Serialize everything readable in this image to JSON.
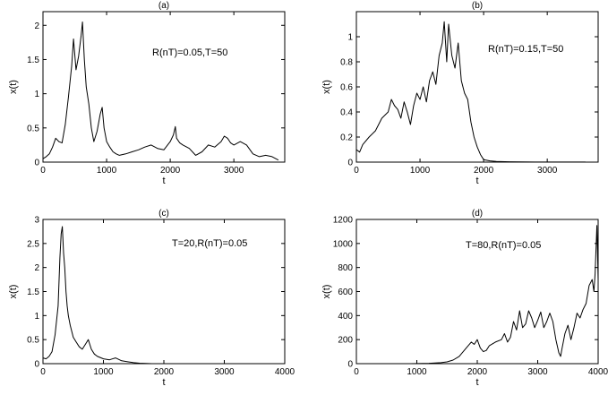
{
  "chart_data": [
    {
      "type": "line",
      "panel_label": "(a)",
      "annotation": "R(nT)=0.05,T=50",
      "xlabel": "t",
      "ylabel": "x(t)",
      "xlim": [
        0,
        3800
      ],
      "ylim": [
        0,
        2.2
      ],
      "xticks": [
        "0",
        "1000",
        "2000",
        "3000"
      ],
      "xtick_values": [
        0,
        1000,
        2000,
        3000
      ],
      "yticks": [
        "0",
        "0.5",
        "1",
        "1.5",
        "2"
      ],
      "ytick_values": [
        0,
        0.5,
        1,
        1.5,
        2
      ],
      "series": [
        {
          "x": [
            0,
            50,
            100,
            150,
            200,
            250,
            300,
            350,
            400,
            450,
            480,
            520,
            560,
            600,
            620,
            650,
            680,
            720,
            760,
            800,
            850,
            900,
            930,
            960,
            1000,
            1050,
            1100,
            1150,
            1200,
            1300,
            1400,
            1500,
            1600,
            1700,
            1800,
            1900,
            2000,
            2050,
            2080,
            2100,
            2150,
            2200,
            2300,
            2400,
            2500,
            2600,
            2700,
            2800,
            2850,
            2900,
            2950,
            3000,
            3100,
            3200,
            3300,
            3400,
            3500,
            3600,
            3700
          ],
          "y": [
            0.05,
            0.08,
            0.12,
            0.22,
            0.35,
            0.3,
            0.28,
            0.55,
            0.95,
            1.4,
            1.8,
            1.35,
            1.55,
            1.85,
            2.05,
            1.5,
            1.1,
            0.85,
            0.5,
            0.3,
            0.45,
            0.7,
            0.8,
            0.5,
            0.3,
            0.22,
            0.15,
            0.12,
            0.1,
            0.12,
            0.15,
            0.18,
            0.22,
            0.25,
            0.2,
            0.18,
            0.3,
            0.4,
            0.52,
            0.35,
            0.28,
            0.25,
            0.2,
            0.1,
            0.15,
            0.25,
            0.22,
            0.3,
            0.38,
            0.35,
            0.28,
            0.25,
            0.3,
            0.25,
            0.12,
            0.08,
            0.1,
            0.08,
            0.03
          ]
        }
      ]
    },
    {
      "type": "line",
      "panel_label": "(b)",
      "annotation": "R(nT)=0.15,T=50",
      "xlabel": "t",
      "ylabel": "x(t)",
      "xlim": [
        0,
        3800
      ],
      "ylim": [
        0,
        1.2
      ],
      "xticks": [
        "0",
        "1000",
        "2000",
        "3000"
      ],
      "xtick_values": [
        0,
        1000,
        2000,
        3000
      ],
      "yticks": [
        "0",
        "0.2",
        "0.4",
        "0.6",
        "0.8",
        "1"
      ],
      "ytick_values": [
        0,
        0.2,
        0.4,
        0.6,
        0.8,
        1
      ],
      "series": [
        {
          "x": [
            0,
            50,
            100,
            200,
            300,
            400,
            500,
            550,
            600,
            650,
            700,
            750,
            800,
            850,
            900,
            950,
            1000,
            1050,
            1100,
            1150,
            1200,
            1250,
            1300,
            1350,
            1380,
            1420,
            1450,
            1500,
            1550,
            1600,
            1650,
            1700,
            1750,
            1800,
            1850,
            1900,
            1950,
            2000,
            2100,
            2200,
            2400,
            2600,
            2800,
            3000,
            3200,
            3400,
            3600
          ],
          "y": [
            0.1,
            0.08,
            0.14,
            0.2,
            0.25,
            0.35,
            0.4,
            0.5,
            0.45,
            0.42,
            0.35,
            0.48,
            0.4,
            0.3,
            0.45,
            0.55,
            0.5,
            0.6,
            0.48,
            0.65,
            0.72,
            0.62,
            0.85,
            0.95,
            1.12,
            0.8,
            1.1,
            0.85,
            0.75,
            0.95,
            0.65,
            0.55,
            0.5,
            0.32,
            0.2,
            0.12,
            0.06,
            0.02,
            0.01,
            0.005,
            0.003,
            0.002,
            0.001,
            0.001,
            0.001,
            0.001,
            0.001
          ]
        }
      ]
    },
    {
      "type": "line",
      "panel_label": "(c)",
      "annotation": "T=20,R(nT)=0.05",
      "xlabel": "t",
      "ylabel": "x(t)",
      "xlim": [
        0,
        4000
      ],
      "ylim": [
        0,
        3
      ],
      "xticks": [
        "0",
        "1000",
        "2000",
        "3000",
        "4000"
      ],
      "xtick_values": [
        0,
        1000,
        2000,
        3000,
        4000
      ],
      "yticks": [
        "0",
        "0.5",
        "1",
        "1.5",
        "2",
        "2.5",
        "3"
      ],
      "ytick_values": [
        0,
        0.5,
        1,
        1.5,
        2,
        2.5,
        3
      ],
      "series": [
        {
          "x": [
            0,
            50,
            100,
            150,
            200,
            250,
            280,
            300,
            320,
            340,
            360,
            380,
            400,
            420,
            450,
            500,
            550,
            600,
            650,
            700,
            750,
            800,
            850,
            900,
            1000,
            1100,
            1200,
            1300,
            1400,
            1500,
            1600,
            1700,
            1800
          ],
          "y": [
            0.12,
            0.1,
            0.15,
            0.25,
            0.6,
            1.2,
            2.2,
            2.7,
            2.85,
            2.3,
            2.0,
            1.5,
            1.2,
            1.0,
            0.8,
            0.55,
            0.45,
            0.35,
            0.3,
            0.4,
            0.5,
            0.3,
            0.2,
            0.15,
            0.1,
            0.08,
            0.12,
            0.06,
            0.04,
            0.02,
            0.01,
            0.005,
            0.0
          ]
        }
      ]
    },
    {
      "type": "line",
      "panel_label": "(d)",
      "annotation": "T=80,R(nT)=0.05",
      "xlabel": "t",
      "ylabel": "x(t)",
      "xlim": [
        0,
        4000
      ],
      "ylim": [
        0,
        1200
      ],
      "xticks": [
        "0",
        "1000",
        "2000",
        "3000",
        "4000"
      ],
      "xtick_values": [
        0,
        1000,
        2000,
        3000,
        4000
      ],
      "yticks": [
        "0",
        "200",
        "400",
        "600",
        "800",
        "1000",
        "1200"
      ],
      "ytick_values": [
        0,
        200,
        400,
        600,
        800,
        1000,
        1200
      ],
      "series": [
        {
          "x": [
            900,
            1000,
            1100,
            1200,
            1300,
            1400,
            1500,
            1600,
            1700,
            1800,
            1850,
            1900,
            1950,
            2000,
            2050,
            2100,
            2150,
            2200,
            2300,
            2400,
            2450,
            2500,
            2550,
            2600,
            2650,
            2700,
            2750,
            2800,
            2850,
            2900,
            2950,
            3000,
            3050,
            3100,
            3150,
            3200,
            3250,
            3300,
            3350,
            3380,
            3400,
            3450,
            3500,
            3550,
            3600,
            3650,
            3700,
            3750,
            3800,
            3850,
            3900,
            3930,
            3950,
            3980,
            4000
          ],
          "y": [
            0,
            1,
            2,
            3,
            5,
            8,
            15,
            30,
            60,
            120,
            150,
            180,
            160,
            200,
            130,
            100,
            110,
            150,
            180,
            200,
            250,
            180,
            220,
            350,
            280,
            440,
            300,
            330,
            440,
            380,
            300,
            360,
            430,
            300,
            350,
            420,
            350,
            200,
            90,
            60,
            120,
            250,
            320,
            200,
            300,
            420,
            380,
            450,
            500,
            650,
            700,
            600,
            750,
            1150,
            700
          ]
        }
      ]
    }
  ]
}
